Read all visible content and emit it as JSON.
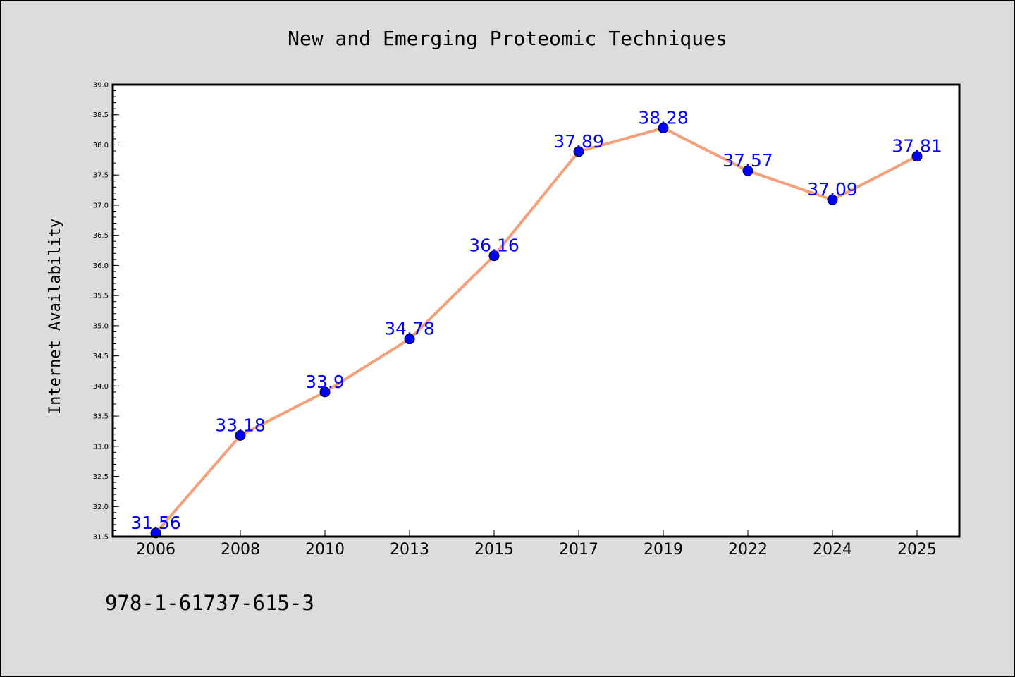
{
  "chart_data": {
    "type": "line",
    "title": "New and Emerging Proteomic Techniques",
    "xlabel": "",
    "ylabel": "Internet Availability",
    "categories": [
      "2006",
      "2008",
      "2010",
      "2013",
      "2015",
      "2017",
      "2019",
      "2022",
      "2024",
      "2025"
    ],
    "series": [
      {
        "values": [
          31.56,
          33.18,
          33.9,
          34.78,
          36.16,
          37.89,
          38.28,
          37.57,
          37.09,
          37.81
        ],
        "labels": [
          "31.56",
          "33.18",
          "33.9",
          "34.78",
          "36.16",
          "37.89",
          "38.28",
          "37.57",
          "37.09",
          "37.81"
        ],
        "line_color": "#f4a07a",
        "marker_color": "#0000ff"
      }
    ],
    "ylim": [
      31.5,
      39.0
    ],
    "yticks": [
      "31.5",
      "32.0",
      "32.5",
      "33.0",
      "33.5",
      "34.0",
      "34.5",
      "35.0",
      "35.5",
      "36.0",
      "36.5",
      "37.0",
      "37.5",
      "38.0",
      "38.5",
      "39.0"
    ],
    "grid": false,
    "legend": "none"
  },
  "footer_text": "978-1-61737-615-3",
  "colors": {
    "background": "#dcdcdc",
    "plot_background": "#ffffff",
    "label_color": "#0000ff"
  }
}
